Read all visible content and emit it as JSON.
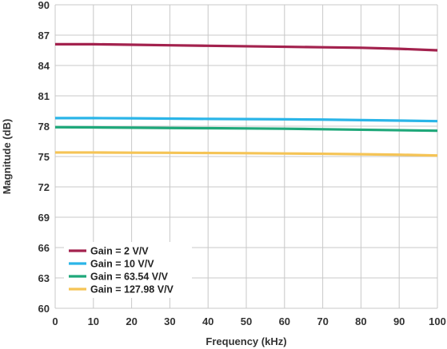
{
  "chart_data": {
    "type": "line",
    "title": "",
    "xlabel": "Frequency (kHz)",
    "ylabel": "Magnitude (dB)",
    "xlim": [
      0,
      100
    ],
    "ylim": [
      60,
      90
    ],
    "xticks": [
      0,
      10,
      20,
      30,
      40,
      50,
      60,
      70,
      80,
      90,
      100
    ],
    "yticks": [
      60,
      63,
      66,
      69,
      72,
      75,
      78,
      81,
      84,
      87,
      90
    ],
    "grid": true,
    "legend_position": "bottom-left",
    "x": [
      0,
      10,
      20,
      30,
      40,
      50,
      60,
      70,
      80,
      90,
      100
    ],
    "series": [
      {
        "name": "Gain = 2 V/V",
        "color": "#a3224e",
        "values": [
          86.1,
          86.1,
          86.05,
          86.0,
          85.95,
          85.9,
          85.85,
          85.8,
          85.75,
          85.65,
          85.5
        ]
      },
      {
        "name": "Gain = 10 V/V",
        "color": "#2bb5e8",
        "values": [
          78.8,
          78.8,
          78.78,
          78.75,
          78.72,
          78.7,
          78.68,
          78.65,
          78.6,
          78.55,
          78.5
        ]
      },
      {
        "name": "Gain = 63.54 V/V",
        "color": "#1fa87a",
        "values": [
          77.9,
          77.88,
          77.85,
          77.82,
          77.8,
          77.78,
          77.75,
          77.7,
          77.65,
          77.6,
          77.55
        ]
      },
      {
        "name": "Gain = 127.98 V/V",
        "color": "#f5c456",
        "values": [
          75.4,
          75.4,
          75.38,
          75.37,
          75.35,
          75.33,
          75.3,
          75.27,
          75.23,
          75.18,
          75.1
        ]
      }
    ]
  }
}
